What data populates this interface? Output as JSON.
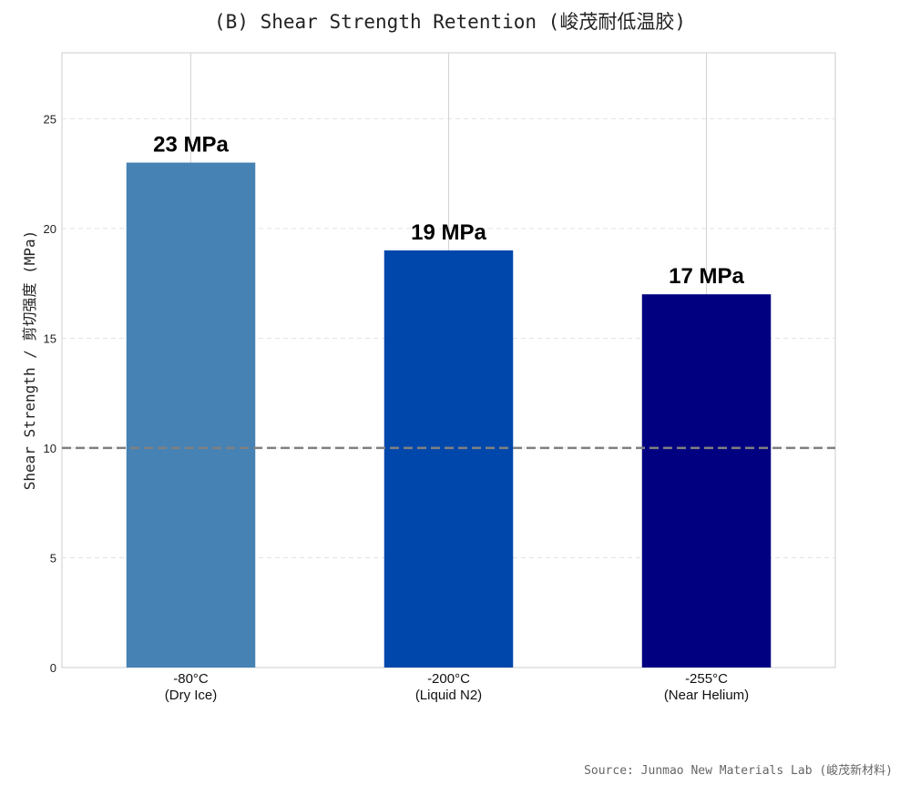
{
  "chart_data": {
    "type": "bar",
    "title": "(B) Shear Strength Retention (峻茂耐低温胶)",
    "ylabel": "Shear Strength / 剪切强度 (MPa)",
    "xlabel": "",
    "categories": [
      [
        "-80°C",
        "(Dry Ice)"
      ],
      [
        "-200°C",
        "(Liquid N2)"
      ],
      [
        "-255°C",
        "(Near Helium)"
      ]
    ],
    "values": [
      23,
      19,
      17
    ],
    "data_labels": [
      "23 MPa",
      "19 MPa",
      "17 MPa"
    ],
    "colors": [
      "#4682b4",
      "#0047ab",
      "#000080"
    ],
    "ylim": [
      0,
      28
    ],
    "yticks": [
      0,
      5,
      10,
      15,
      20,
      25
    ],
    "reference_line": {
      "value": 10,
      "style": "dashed",
      "color": "#808080"
    },
    "grid": true,
    "source": "Source: Junmao New Materials Lab (峻茂新材料)"
  }
}
